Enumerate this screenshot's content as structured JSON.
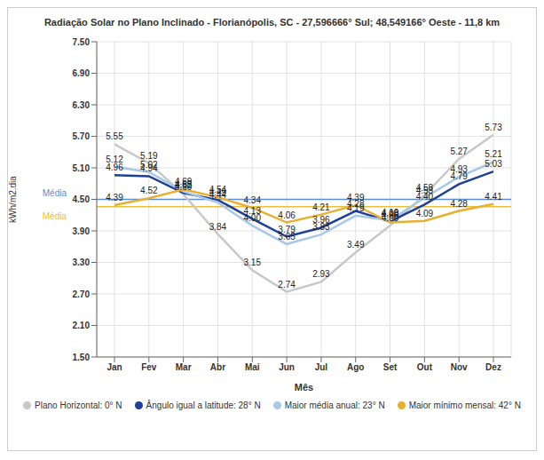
{
  "chart_data": {
    "type": "line",
    "title": "Radiação Solar no Plano Inclinado - Florianópolis, SC -  27,596666° Sul;  48,549166° Oeste - 11,8 km",
    "x_label": "Mês",
    "y_label": "kWh/m2.dia",
    "categories": [
      "Jan",
      "Fev",
      "Mar",
      "Abr",
      "Mai",
      "Jun",
      "Jul",
      "Ago",
      "Set",
      "Out",
      "Nov",
      "Dez"
    ],
    "series": [
      {
        "name": "Plano Horizontal: 0° N",
        "color": "#c8c8c8",
        "values": [
          5.55,
          5.19,
          4.6,
          3.84,
          3.15,
          2.74,
          2.93,
          3.49,
          4.0,
          4.58,
          5.27,
          5.73
        ],
        "value_labels": [
          "5.55",
          "5.19",
          "4.60",
          "3.84",
          "3.15",
          "2.74",
          "2.93",
          "3.49",
          "4.00",
          "4.58",
          "5.27",
          "5.73"
        ]
      },
      {
        "name": "Ângulo igual a latitude: 28° N",
        "color": "#1f3f99",
        "values": [
          4.96,
          4.94,
          4.62,
          4.49,
          4.13,
          3.79,
          3.96,
          4.28,
          4.08,
          4.4,
          4.79,
          5.03
        ],
        "value_labels": [
          "4.96",
          "4.94",
          "4.62",
          "4.49",
          "4.13",
          "3.79",
          "3.96",
          "4.28",
          "4.08",
          "4.40",
          "4.79",
          "5.03"
        ]
      },
      {
        "name": "Maior média anual: 23° N",
        "color": "#a8c8e8",
        "values": [
          5.12,
          5.02,
          4.65,
          4.44,
          4.0,
          3.65,
          3.83,
          4.19,
          4.1,
          4.53,
          4.93,
          5.21
        ],
        "value_labels": [
          "5.12",
          "5.02",
          "4.65",
          "4.44",
          "4.00",
          "3.65",
          "3.83",
          "4.19",
          "4.10",
          "4.53",
          "4.93",
          "5.21"
        ]
      },
      {
        "name": "Maior mínimo mensal: 42° N",
        "color": "#e8b030",
        "values": [
          4.39,
          4.52,
          4.69,
          4.54,
          4.34,
          4.06,
          4.21,
          4.39,
          4.06,
          4.09,
          4.28,
          4.41
        ],
        "value_labels": [
          "4.39",
          "4.52",
          "4.69",
          "4.54",
          "4.34",
          "4.06",
          "4.21",
          "4.39",
          "4.06",
          "4.09",
          "4.28",
          "4.41"
        ]
      }
    ],
    "averages": [
      {
        "label": "Média",
        "value": 4.5,
        "color": "#5b8fd0"
      },
      {
        "label": "Média",
        "value": 4.36,
        "color": "#e8c040"
      }
    ],
    "ylim": [
      1.5,
      7.5
    ],
    "yticks": [
      {
        "value": 1.5,
        "label": "1.50"
      },
      {
        "value": 2.1,
        "label": "2.10"
      },
      {
        "value": 2.7,
        "label": "2.70"
      },
      {
        "value": 3.3,
        "label": "3.30"
      },
      {
        "value": 3.9,
        "label": "3.90"
      },
      {
        "value": 4.5,
        "label": "4.50"
      },
      {
        "value": 5.1,
        "label": "5.10"
      },
      {
        "value": 5.7,
        "label": "5.70"
      },
      {
        "value": 6.3,
        "label": "6.30"
      },
      {
        "value": 6.9,
        "label": "6.90"
      },
      {
        "value": 7.5,
        "label": "7.50"
      }
    ],
    "grid": true,
    "data_labels": true
  }
}
